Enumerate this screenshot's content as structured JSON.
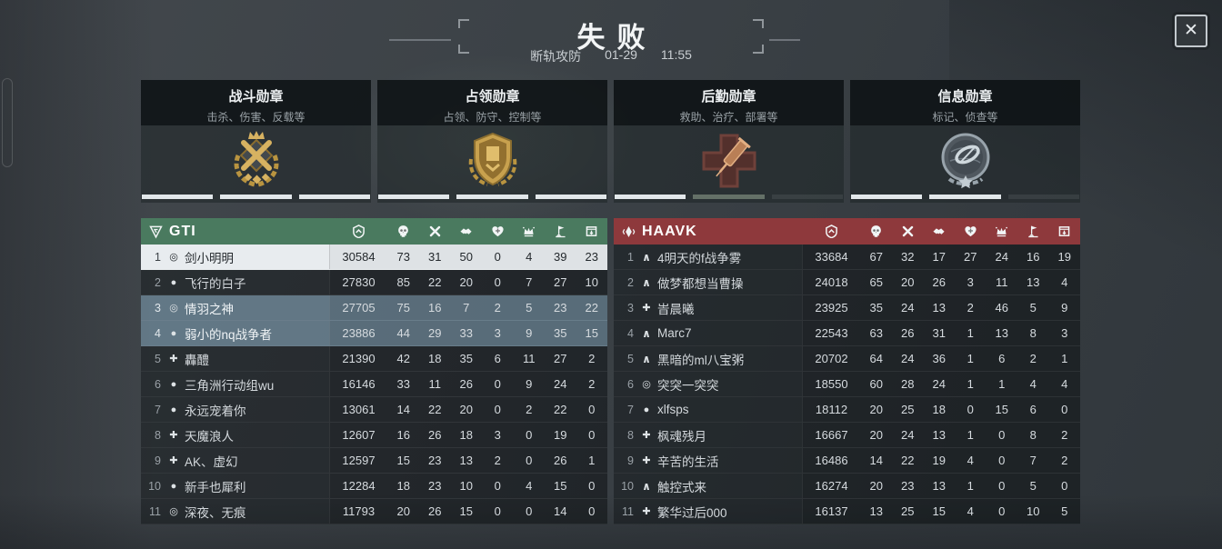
{
  "window": {
    "close_icon": "✕"
  },
  "header": {
    "result": "失败",
    "mode": "断轨攻防",
    "date": "01-29",
    "time": "11:55"
  },
  "medal_panels": [
    {
      "title": "战斗勋章",
      "subtitle": "击杀、伤害、反载等",
      "icon": "combat-medal",
      "segments": [
        "on",
        "on",
        "on"
      ]
    },
    {
      "title": "占领勋章",
      "subtitle": "占领、防守、控制等",
      "icon": "capture-medal",
      "segments": [
        "on",
        "on",
        "on"
      ]
    },
    {
      "title": "后勤勋章",
      "subtitle": "救助、治疗、部署等",
      "icon": "logistics-medal",
      "segments": [
        "on",
        "dim",
        "off"
      ]
    },
    {
      "title": "信息勋章",
      "subtitle": "标记、侦查等",
      "icon": "intel-medal",
      "segments": [
        "on",
        "on",
        "off"
      ]
    }
  ],
  "columns": [
    {
      "id": "score",
      "icon": "score-icon"
    },
    {
      "id": "kills",
      "icon": "kills-icon"
    },
    {
      "id": "deaths",
      "icon": "deaths-icon"
    },
    {
      "id": "assists",
      "icon": "assists-icon"
    },
    {
      "id": "revives",
      "icon": "revive-icon"
    },
    {
      "id": "supplies",
      "icon": "supply-icon"
    },
    {
      "id": "captures",
      "icon": "capture-flag-icon"
    },
    {
      "id": "deployments",
      "icon": "deploy-crate-icon"
    }
  ],
  "class_glyphs": {
    "assault": "∧",
    "engineer": "●",
    "medic": "✚",
    "recon": "◎"
  },
  "teams": [
    {
      "name": "GTI",
      "color": "#4a7a5f",
      "logo": "gti-logo-icon",
      "rows": [
        {
          "rank": 1,
          "class": "recon",
          "player": "剑小明明",
          "values": [
            30584,
            73,
            31,
            50,
            0,
            4,
            39,
            23
          ],
          "highlight": "self"
        },
        {
          "rank": 2,
          "class": "engineer",
          "player": "飞行的白子",
          "values": [
            27830,
            85,
            22,
            20,
            0,
            7,
            27,
            10
          ],
          "highlight": null
        },
        {
          "rank": 3,
          "class": "recon",
          "player": "情羽之神",
          "values": [
            27705,
            75,
            16,
            7,
            2,
            5,
            23,
            22
          ],
          "highlight": "squad"
        },
        {
          "rank": 4,
          "class": "engineer",
          "player": "弱小的nq战争者",
          "values": [
            23886,
            44,
            29,
            33,
            3,
            9,
            35,
            15
          ],
          "highlight": "squad"
        },
        {
          "rank": 5,
          "class": "medic",
          "player": "轟醴",
          "values": [
            21390,
            42,
            18,
            35,
            6,
            11,
            27,
            2
          ],
          "highlight": null
        },
        {
          "rank": 6,
          "class": "engineer",
          "player": "三角洲行动组wu",
          "values": [
            16146,
            33,
            11,
            26,
            0,
            9,
            24,
            2
          ],
          "highlight": null
        },
        {
          "rank": 7,
          "class": "engineer",
          "player": "永远宠着你",
          "values": [
            13061,
            14,
            22,
            20,
            0,
            2,
            22,
            0
          ],
          "highlight": null
        },
        {
          "rank": 8,
          "class": "medic",
          "player": "天魔浪人",
          "values": [
            12607,
            16,
            26,
            18,
            3,
            0,
            19,
            0
          ],
          "highlight": null
        },
        {
          "rank": 9,
          "class": "medic",
          "player": "AK、虚幻",
          "values": [
            12597,
            15,
            23,
            13,
            2,
            0,
            26,
            1
          ],
          "highlight": null
        },
        {
          "rank": 10,
          "class": "engineer",
          "player": "新手也犀利",
          "values": [
            12284,
            18,
            23,
            10,
            0,
            4,
            15,
            0
          ],
          "highlight": null
        },
        {
          "rank": 11,
          "class": "recon",
          "player": "深夜、无痕",
          "values": [
            11793,
            20,
            26,
            15,
            0,
            0,
            14,
            0
          ],
          "highlight": null
        }
      ]
    },
    {
      "name": "HAAVK",
      "color": "#8e393c",
      "logo": "haavk-logo-icon",
      "rows": [
        {
          "rank": 1,
          "class": "assault",
          "player": "4明天的f战争雾",
          "values": [
            33684,
            67,
            32,
            17,
            27,
            24,
            16,
            19
          ],
          "highlight": null
        },
        {
          "rank": 2,
          "class": "assault",
          "player": "做梦都想当曹操",
          "values": [
            24018,
            65,
            20,
            26,
            3,
            11,
            13,
            4
          ],
          "highlight": null
        },
        {
          "rank": 3,
          "class": "medic",
          "player": "峕晨曦",
          "values": [
            23925,
            35,
            24,
            13,
            2,
            46,
            5,
            9
          ],
          "highlight": null
        },
        {
          "rank": 4,
          "class": "assault",
          "player": "Marc7",
          "values": [
            22543,
            63,
            26,
            31,
            1,
            13,
            8,
            3
          ],
          "highlight": null
        },
        {
          "rank": 5,
          "class": "assault",
          "player": "黑暗的ml八宝粥",
          "values": [
            20702,
            64,
            24,
            36,
            1,
            6,
            2,
            1
          ],
          "highlight": null
        },
        {
          "rank": 6,
          "class": "recon",
          "player": "突突一突突",
          "values": [
            18550,
            60,
            28,
            24,
            1,
            1,
            4,
            4
          ],
          "highlight": null
        },
        {
          "rank": 7,
          "class": "engineer",
          "player": "xlfsps",
          "values": [
            18112,
            20,
            25,
            18,
            0,
            15,
            6,
            0
          ],
          "highlight": null
        },
        {
          "rank": 8,
          "class": "medic",
          "player": "枫魂残月",
          "values": [
            16667,
            20,
            24,
            13,
            1,
            0,
            8,
            2
          ],
          "highlight": null
        },
        {
          "rank": 9,
          "class": "medic",
          "player": "辛苦的生活",
          "values": [
            16486,
            14,
            22,
            19,
            4,
            0,
            7,
            2
          ],
          "highlight": null
        },
        {
          "rank": 10,
          "class": "assault",
          "player": "触控式来",
          "values": [
            16274,
            20,
            23,
            13,
            1,
            0,
            5,
            0
          ],
          "highlight": null
        },
        {
          "rank": 11,
          "class": "medic",
          "player": "繁华过后000",
          "values": [
            16137,
            13,
            25,
            15,
            4,
            0,
            10,
            5
          ],
          "highlight": null
        }
      ]
    }
  ]
}
